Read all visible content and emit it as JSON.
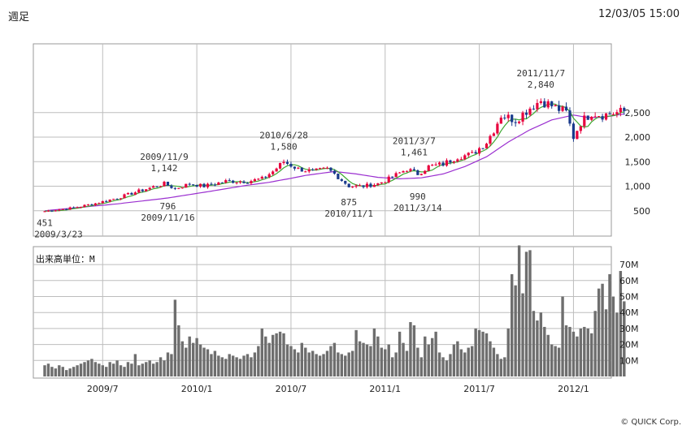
{
  "header": {
    "period": "週足",
    "timestamp": "12/03/05 15:00"
  },
  "footer": {
    "copyright": "© QUICK Corp."
  },
  "chart_data": [
    {
      "type": "candlestick",
      "grid": true,
      "ylim": [
        0,
        3250
      ],
      "y_ticks": [
        "500",
        "1,000",
        "1,500",
        "2,000",
        "2,500"
      ],
      "y_tick_values": [
        500,
        1000,
        1500,
        2000,
        2500
      ],
      "x_tick_labels": [
        "2009/7",
        "2010/1",
        "2010/7",
        "2011/1",
        "2011/7",
        "2012/1"
      ],
      "x_tick_weeks": [
        16,
        42,
        68,
        94,
        120,
        146
      ],
      "colors": {
        "up": "#e8003d",
        "down": "#1a3a8c",
        "ma_short": "#3fa832",
        "ma_long": "#9b30d0"
      },
      "annotations": [
        {
          "date": "2009/3/23",
          "value": "451",
          "week": 0,
          "price": 451,
          "pos": "below"
        },
        {
          "date": "2009/11/9",
          "value": "1,142",
          "week": 33,
          "price": 1142,
          "pos": "above"
        },
        {
          "date": "2009/11/16",
          "value": "796",
          "week": 34,
          "price": 796,
          "pos": "below"
        },
        {
          "date": "2010/6/28",
          "value": "1,580",
          "week": 66,
          "price": 1580,
          "pos": "above"
        },
        {
          "date": "2010/11/1",
          "value": "875",
          "week": 84,
          "price": 875,
          "pos": "below"
        },
        {
          "date": "2011/3/7",
          "value": "1,461",
          "week": 102,
          "price": 1461,
          "pos": "above"
        },
        {
          "date": "2011/3/14",
          "value": "990",
          "week": 103,
          "price": 990,
          "pos": "below"
        },
        {
          "date": "2011/11/7",
          "value": "2,840",
          "week": 137,
          "price": 2840,
          "pos": "above"
        }
      ],
      "price_anchors": [
        [
          0,
          490
        ],
        [
          8,
          560
        ],
        [
          14,
          650
        ],
        [
          20,
          760
        ],
        [
          26,
          900
        ],
        [
          33,
          1050
        ],
        [
          36,
          950
        ],
        [
          40,
          1050
        ],
        [
          44,
          1000
        ],
        [
          50,
          1100
        ],
        [
          56,
          1100
        ],
        [
          60,
          1150
        ],
        [
          63,
          1300
        ],
        [
          66,
          1500
        ],
        [
          70,
          1350
        ],
        [
          74,
          1300
        ],
        [
          78,
          1350
        ],
        [
          80,
          1250
        ],
        [
          84,
          1000
        ],
        [
          88,
          1000
        ],
        [
          92,
          1050
        ],
        [
          95,
          1150
        ],
        [
          100,
          1350
        ],
        [
          103,
          1250
        ],
        [
          106,
          1400
        ],
        [
          110,
          1450
        ],
        [
          114,
          1600
        ],
        [
          118,
          1650
        ],
        [
          122,
          1900
        ],
        [
          124,
          2150
        ],
        [
          126,
          2450
        ],
        [
          130,
          2350
        ],
        [
          134,
          2600
        ],
        [
          137,
          2750
        ],
        [
          141,
          2600
        ],
        [
          144,
          2500
        ],
        [
          146,
          2000
        ],
        [
          148,
          2300
        ],
        [
          151,
          2500
        ],
        [
          154,
          2450
        ]
      ],
      "ma_long_anchors": [
        [
          0,
          500
        ],
        [
          20,
          640
        ],
        [
          34,
          760
        ],
        [
          46,
          900
        ],
        [
          56,
          1020
        ],
        [
          62,
          1080
        ],
        [
          68,
          1160
        ],
        [
          72,
          1220
        ],
        [
          80,
          1300
        ],
        [
          86,
          1250
        ],
        [
          92,
          1180
        ],
        [
          98,
          1150
        ],
        [
          104,
          1170
        ],
        [
          110,
          1250
        ],
        [
          116,
          1400
        ],
        [
          122,
          1600
        ],
        [
          128,
          1900
        ],
        [
          134,
          2150
        ],
        [
          140,
          2350
        ],
        [
          146,
          2450
        ],
        [
          150,
          2400
        ],
        [
          154,
          2400
        ]
      ]
    },
    {
      "type": "bar",
      "title": "出来高単位：M",
      "grid": true,
      "ylim": [
        0,
        80
      ],
      "y_ticks": [
        "10M",
        "20M",
        "30M",
        "40M",
        "50M",
        "60M",
        "70M"
      ],
      "y_tick_values": [
        10,
        20,
        30,
        40,
        50,
        60,
        70
      ],
      "colors": {
        "bar": "#6e6e6e"
      },
      "values": [
        7,
        8,
        6,
        5,
        7,
        6,
        4,
        5,
        6,
        7,
        8,
        9,
        10,
        11,
        9,
        8,
        7,
        6,
        9,
        8,
        10,
        7,
        6,
        9,
        8,
        14,
        7,
        8,
        9,
        10,
        8,
        9,
        12,
        10,
        15,
        14,
        48,
        32,
        22,
        18,
        25,
        21,
        24,
        20,
        18,
        17,
        14,
        16,
        13,
        12,
        11,
        14,
        13,
        12,
        11,
        13,
        14,
        12,
        15,
        19,
        30,
        25,
        21,
        26,
        27,
        28,
        27,
        20,
        19,
        17,
        15,
        21,
        18,
        15,
        16,
        14,
        13,
        14,
        16,
        19,
        21,
        15,
        14,
        13,
        15,
        16,
        29,
        22,
        21,
        20,
        19,
        30,
        25,
        18,
        17,
        20,
        12,
        15,
        28,
        21,
        16,
        34,
        32,
        18,
        12,
        25,
        20,
        24,
        28,
        15,
        12,
        10,
        14,
        20,
        22,
        17,
        15,
        18,
        19,
        30,
        29,
        28,
        27,
        22,
        18,
        14,
        11,
        12,
        30,
        64,
        57,
        82,
        52,
        78,
        79,
        41,
        35,
        40,
        31,
        26,
        20,
        19,
        18,
        50,
        32,
        31,
        28,
        25,
        30,
        31,
        30,
        27,
        41,
        55,
        58,
        42,
        64,
        50,
        40,
        66,
        47
      ]
    }
  ]
}
